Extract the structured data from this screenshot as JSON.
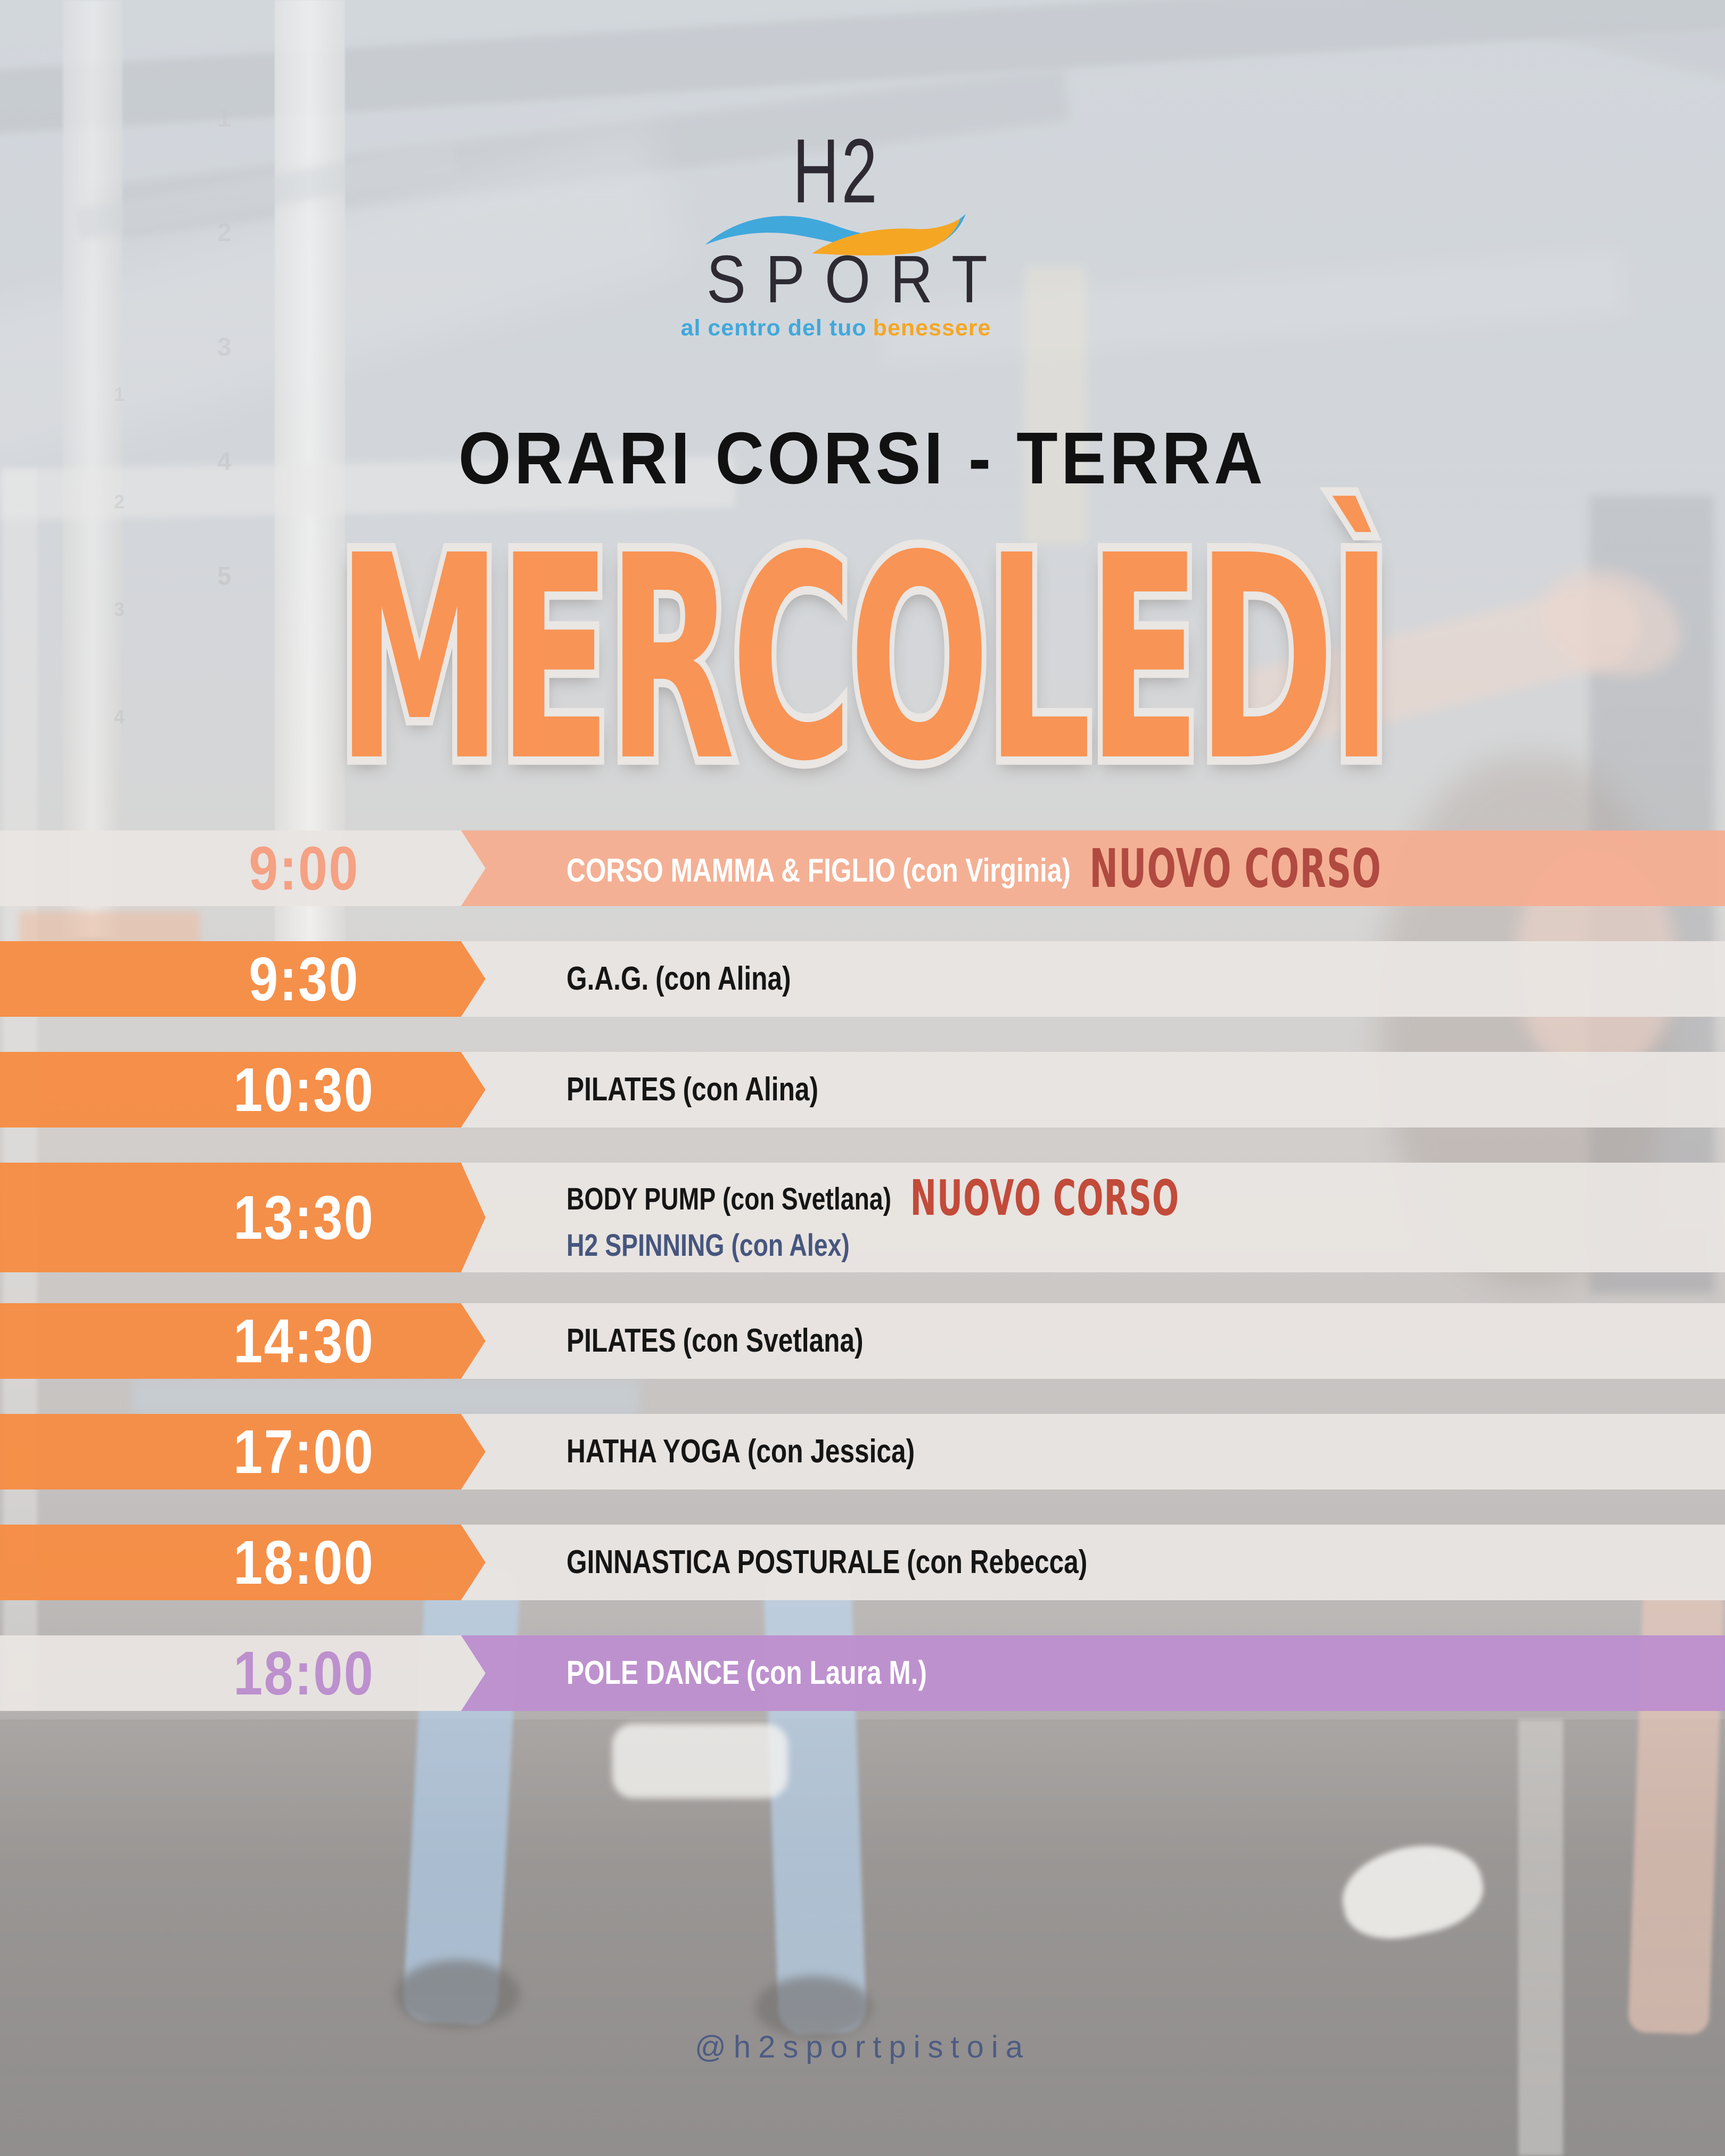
{
  "logo": {
    "name": "H2",
    "word": "SPORT",
    "tagline_left": "al centro del tuo",
    "tagline_right": "benessere"
  },
  "header": {
    "kicker": "ORARI CORSI - TERRA",
    "day": "MERCOLEDÌ"
  },
  "schedule": {
    "rows": [
      {
        "time": "9:00",
        "variant": "salmon",
        "lines": [
          {
            "course": "CORSO MAMMA & FIGLIO",
            "instructor": "(con Virginia)",
            "badge": "NUOVO CORSO"
          }
        ]
      },
      {
        "time": "9:30",
        "variant": "orange",
        "lines": [
          {
            "course": "G.A.G.",
            "instructor": "(con Alina)"
          }
        ]
      },
      {
        "time": "10:30",
        "variant": "orange",
        "lines": [
          {
            "course": "PILATES",
            "instructor": "(con Alina)"
          }
        ]
      },
      {
        "time": "13:30",
        "variant": "orange",
        "tall": true,
        "lines": [
          {
            "course": "BODY PUMP",
            "instructor": "(con Svetlana)",
            "badge": "NUOVO CORSO"
          },
          {
            "course": "H2 SPINNING",
            "instructor": "(con Alex)",
            "color": "navy"
          }
        ]
      },
      {
        "time": "14:30",
        "variant": "orange",
        "lines": [
          {
            "course": "PILATES",
            "instructor": "(con Svetlana)"
          }
        ]
      },
      {
        "time": "17:00",
        "variant": "orange",
        "lines": [
          {
            "course": "HATHA YOGA",
            "instructor": "(con Jessica)"
          }
        ]
      },
      {
        "time": "18:00",
        "variant": "orange",
        "lines": [
          {
            "course": "GINNASTICA POSTURALE",
            "instructor": "(con Rebecca)"
          }
        ]
      },
      {
        "time": "18:00",
        "variant": "purple",
        "lines": [
          {
            "course": "POLE DANCE",
            "instructor": "(con Laura M.)"
          }
        ]
      }
    ]
  },
  "footer": {
    "handle": "@h2sportpistoia"
  },
  "background": {
    "rack_numbers_primary": [
      "1",
      "2",
      "3",
      "4",
      "5"
    ],
    "rack_numbers_secondary": [
      "1",
      "2",
      "3",
      "4"
    ]
  },
  "colors": {
    "orange": "#F68C44",
    "salmon_row": "#F5AE92",
    "salmon_time": "#F5A183",
    "light": "#E9E5E2",
    "purple": "#BD90CE",
    "badge_salmon": "#B14A41",
    "badge_light": "#C24B3A",
    "navy": "#46567E",
    "day_orange": "#F89455",
    "day_outline": "#E9E6E3",
    "handle_blue": "#4E5C83",
    "logo_dark": "#2E2A33",
    "logo_blue": "#41A8DC",
    "logo_orange": "#F5A623"
  }
}
